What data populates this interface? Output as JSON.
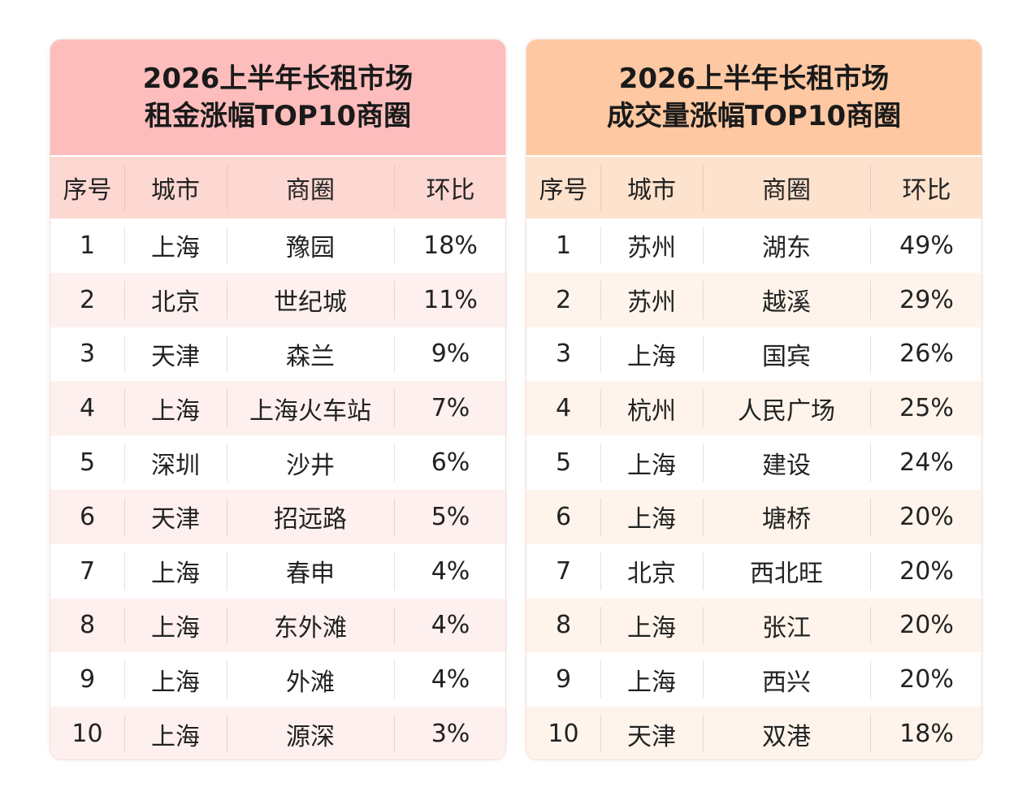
{
  "tables": [
    {
      "title": [
        "2026上半年长租市场",
        "租金涨幅TOP10商圈"
      ],
      "header": [
        "序号",
        "城市",
        "商圈",
        "环比"
      ],
      "rows": [
        [
          "1",
          "上海",
          "豫园",
          "18%"
        ],
        [
          "2",
          "北京",
          "世纪城",
          "11%"
        ],
        [
          "3",
          "天津",
          "森兰",
          "9%"
        ],
        [
          "4",
          "上海",
          "上海火车站",
          "7%"
        ],
        [
          "5",
          "深圳",
          "沙井",
          "6%"
        ],
        [
          "6",
          "天津",
          "招远路",
          "5%"
        ],
        [
          "7",
          "上海",
          "春申",
          "4%"
        ],
        [
          "8",
          "上海",
          "东外滩",
          "4%"
        ],
        [
          "9",
          "上海",
          "外滩",
          "4%"
        ],
        [
          "10",
          "上海",
          "源深",
          "3%"
        ]
      ]
    },
    {
      "title": [
        "2026上半年长租市场",
        "成交量涨幅TOP10商圈"
      ],
      "header": [
        "序号",
        "城市",
        "商圈",
        "环比"
      ],
      "rows": [
        [
          "1",
          "苏州",
          "湖东",
          "49%"
        ],
        [
          "2",
          "苏州",
          "越溪",
          "29%"
        ],
        [
          "3",
          "上海",
          "国宾",
          "26%"
        ],
        [
          "4",
          "杭州",
          "人民广场",
          "25%"
        ],
        [
          "5",
          "上海",
          "建设",
          "24%"
        ],
        [
          "6",
          "上海",
          "塘桥",
          "20%"
        ],
        [
          "7",
          "北京",
          "西北旺",
          "20%"
        ],
        [
          "8",
          "上海",
          "张江",
          "20%"
        ],
        [
          "9",
          "上海",
          "西兴",
          "20%"
        ],
        [
          "10",
          "天津",
          "双港",
          "18%"
        ]
      ]
    }
  ]
}
